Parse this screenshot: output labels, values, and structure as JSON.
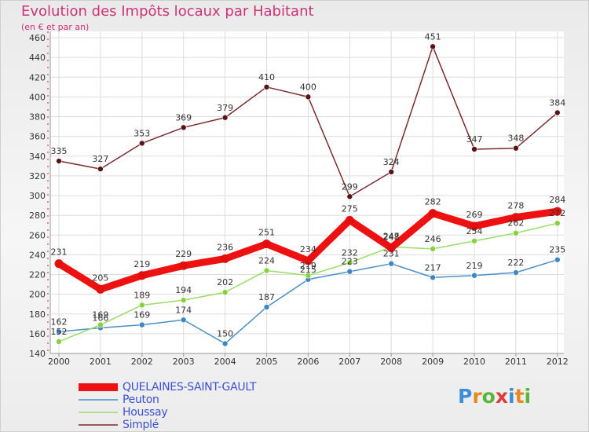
{
  "chart_data": {
    "type": "line",
    "title": "Evolution des Impôts locaux par Habitant",
    "subtitle": "(en € et par an)",
    "categories": [
      "2000",
      "2001",
      "2002",
      "2003",
      "2004",
      "2005",
      "2006",
      "2007",
      "2008",
      "2009",
      "2010",
      "2011",
      "2012"
    ],
    "ylim": [
      140,
      460
    ],
    "yticks": [
      140,
      160,
      180,
      200,
      220,
      240,
      260,
      280,
      300,
      320,
      340,
      360,
      380,
      400,
      420,
      440,
      460
    ],
    "series": [
      {
        "name": "Simplé",
        "color": "#7a2a2e",
        "marker": "#5a1418",
        "emphasis": false,
        "values": [
          335,
          327,
          353,
          369,
          379,
          410,
          400,
          299,
          324,
          451,
          347,
          348,
          384
        ]
      },
      {
        "name": "Peuton",
        "color": "#4a90c8",
        "marker": "#3f86c4",
        "emphasis": false,
        "values": [
          162,
          166,
          169,
          174,
          150,
          187,
          215,
          223,
          231,
          217,
          219,
          222,
          235
        ]
      },
      {
        "name": "Houssay",
        "color": "#99dd66",
        "marker": "#86d23a",
        "emphasis": false,
        "values": [
          152,
          169,
          189,
          194,
          202,
          224,
          219,
          232,
          248,
          246,
          254,
          262,
          272
        ]
      },
      {
        "name": "QUELAINES-SAINT-GAULT",
        "color": "#ee1111",
        "marker": "#e30f0f",
        "emphasis": true,
        "values": [
          231,
          205,
          219,
          229,
          236,
          251,
          234,
          275,
          247,
          282,
          269,
          278,
          284
        ]
      }
    ],
    "legend": [
      "QUELAINES-SAINT-GAULT",
      "Peuton",
      "Houssay",
      "Simplé"
    ]
  },
  "logo": {
    "text": "Proxiti",
    "letters": [
      {
        "ch": "P",
        "color": "#3b8fd8"
      },
      {
        "ch": "r",
        "color": "#e58a1f"
      },
      {
        "ch": "o",
        "color": "#58b73a"
      },
      {
        "ch": "x",
        "color": "#e03a3a"
      },
      {
        "ch": "i",
        "color": "#3b8fd8"
      },
      {
        "ch": "t",
        "color": "#e58a1f"
      },
      {
        "ch": "i",
        "color": "#58b73a"
      }
    ]
  }
}
